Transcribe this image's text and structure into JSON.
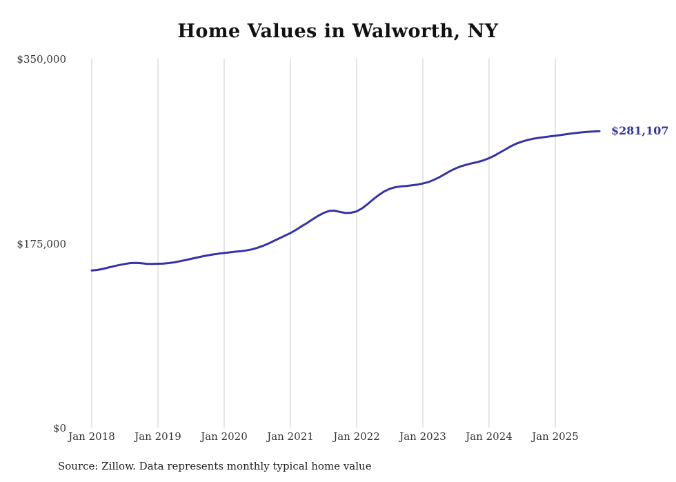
{
  "title": "Home Values in Walworth, NY",
  "source_note": "Source: Zillow. Data represents monthly typical home value",
  "colors": {
    "line": "#3432a8",
    "grid": "#cccccc",
    "text": "#333333",
    "end_label": "#3432a8"
  },
  "chart_data": {
    "type": "line",
    "title": "Home Values in Walworth, NY",
    "xlabel": "",
    "ylabel": "",
    "ylim": [
      0,
      350000
    ],
    "grid": "vertical-only",
    "legend": "none",
    "y_tick_labels": [
      "$350,000",
      "$175,000",
      "$0"
    ],
    "x_tick_labels": [
      "Jan 2018",
      "Jan 2019",
      "Jan 2020",
      "Jan 2021",
      "Jan 2022",
      "Jan 2023",
      "Jan 2024",
      "Jan 2025"
    ],
    "x_start": "Jan 2018",
    "x_end": "Sep 2025",
    "x_frequency": "monthly",
    "final_value": 281107,
    "final_value_label": "$281,107",
    "series": [
      {
        "name": "Typical home value",
        "values": [
          149000,
          149500,
          150500,
          151800,
          153000,
          154200,
          155200,
          156000,
          156200,
          155800,
          155300,
          155200,
          155400,
          155600,
          156000,
          156800,
          157800,
          158900,
          160000,
          161200,
          162300,
          163300,
          164200,
          165000,
          165600,
          166200,
          166800,
          167300,
          168000,
          169000,
          170500,
          172300,
          174500,
          177000,
          179500,
          182000,
          184500,
          187500,
          190800,
          194000,
          197500,
          200800,
          203500,
          205500,
          205800,
          204500,
          203500,
          203800,
          205000,
          208000,
          212000,
          216500,
          220500,
          224000,
          226500,
          228000,
          228800,
          229200,
          229800,
          230500,
          231500,
          232800,
          235000,
          237500,
          240500,
          243500,
          246000,
          248000,
          249500,
          250800,
          252000,
          253500,
          255500,
          258000,
          261000,
          264000,
          267000,
          269500,
          271300,
          272800,
          274000,
          274800,
          275500,
          276200,
          276800,
          277500,
          278300,
          279000,
          279600,
          280200,
          280600,
          280900,
          281107
        ]
      }
    ]
  }
}
